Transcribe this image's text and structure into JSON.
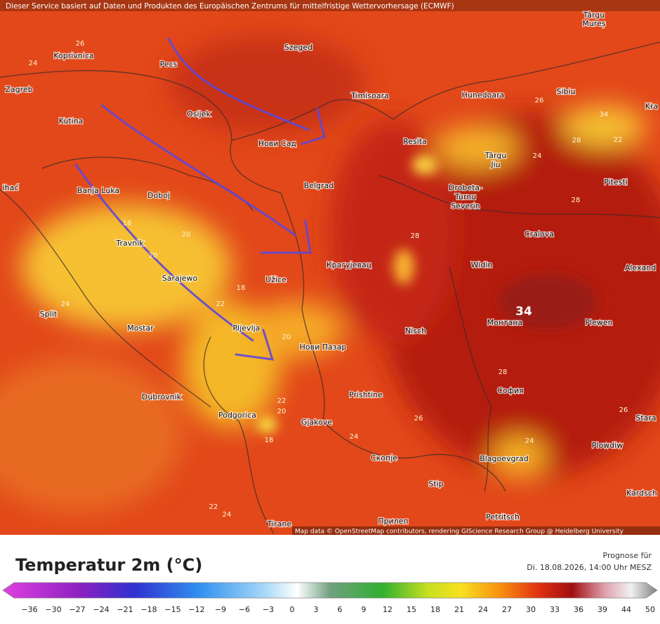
{
  "header": {
    "notice": "Dieser Service basiert auf Daten und Produkten des Europäischen Zentrums für mittelfristige Wettervorhersage (ECMWF)"
  },
  "map": {
    "cities": [
      "Koprivnica",
      "Pecs",
      "Szeged",
      "Zagreb",
      "Osijek",
      "Timisoara",
      "Hunedoara",
      "Sibiu",
      "Kutina",
      "Нови Сад",
      "Resita",
      "Târgu",
      "Jiu",
      "Banja Luka",
      "Doboj",
      "Belgrad",
      "Drobeta-",
      "Turnu",
      "Severin",
      "Pitesti",
      "Travnik",
      "Craiova",
      "Крагујевац",
      "Widin",
      "Alexand",
      "Sarajewo",
      "Užice",
      "Split",
      "Mostar",
      "Монтана",
      "Plewen",
      "Nisch",
      "Pljevlja",
      "Нови Пазар",
      "Dubrovnik",
      "Prishtine",
      "София",
      "Stara",
      "Podgorica",
      "Gjakove",
      "Plowdiw",
      "Скопје",
      "Blagoevgrad",
      "Stip",
      "Kardsch",
      "Tirane",
      "Petritsch",
      "Прилеп",
      "Târgu",
      "Mureș",
      "Kra",
      "ihać"
    ],
    "contour_labels": [
      "26",
      "24",
      "26",
      "34",
      "22",
      "24",
      "28",
      "20",
      "18",
      "20",
      "28",
      "24",
      "22",
      "20",
      "18",
      "28",
      "26",
      "22",
      "20",
      "18",
      "24",
      "24",
      "22",
      "24",
      "26",
      "28"
    ],
    "highlight": "34",
    "attribution": "Map data © OpenStreetMap contributors, rendering GIScience Research Group @ Heidelberg University"
  },
  "legend": {
    "title": "Temperatur 2m (°C)",
    "forecast_label": "Prognose für",
    "forecast_time": "Di. 18.08.2026, 14:00 Uhr MESZ",
    "ticks": [
      "−36",
      "−30",
      "−27",
      "−24",
      "−21",
      "−18",
      "−15",
      "−12",
      "−9",
      "−6",
      "−3",
      "0",
      "3",
      "6",
      "9",
      "12",
      "15",
      "18",
      "21",
      "24",
      "27",
      "30",
      "33",
      "36",
      "39",
      "44",
      "50"
    ]
  }
}
